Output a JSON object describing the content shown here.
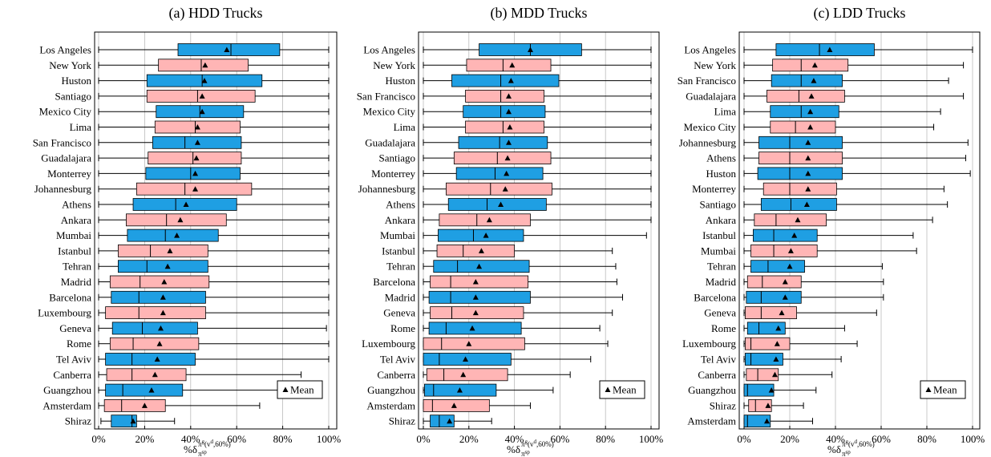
{
  "chart_data": [
    {
      "type": "box",
      "title": "(a) HDD Trucks",
      "categories": [
        "Los Angeles",
        "New York",
        "Huston",
        "Santiago",
        "Mexico City",
        "Lima",
        "San Francisco",
        "Guadalajara",
        "Monterrey",
        "Johannesburg",
        "Athens",
        "Ankara",
        "Mumbai",
        "Istanbul",
        "Tehran",
        "Madrid",
        "Barcelona",
        "Luxembourg",
        "Geneva",
        "Rome",
        "Tel Aviv",
        "Canberra",
        "Guangzhou",
        "Amsterdam",
        "Shiraz"
      ],
      "whisker_low": [
        0,
        0,
        0,
        0,
        0,
        0,
        0,
        0,
        0,
        0,
        0,
        0,
        0,
        0,
        0,
        0,
        0,
        0,
        0,
        0,
        0,
        0,
        0,
        0,
        1
      ],
      "q1": [
        34.5,
        26,
        21,
        21,
        25,
        24.5,
        23.5,
        21.5,
        20.5,
        16.5,
        15,
        12,
        12.5,
        8.5,
        8.5,
        5,
        5.5,
        3,
        6,
        5,
        3,
        3.5,
        3,
        2.5,
        5.5
      ],
      "median": [
        57.5,
        44.6,
        45,
        43,
        44,
        42,
        37.5,
        41,
        40,
        37.5,
        33.5,
        29.5,
        29,
        22.5,
        21,
        18,
        17.5,
        17.5,
        19,
        15,
        14.5,
        14.5,
        10.5,
        10,
        14.5
      ],
      "q3": [
        78.7,
        65,
        71,
        68,
        63,
        61.5,
        62,
        62,
        61.5,
        66.5,
        60,
        55.5,
        52,
        47.5,
        47.5,
        48,
        46.5,
        46.5,
        43,
        43.5,
        42,
        38,
        36.5,
        29,
        16.5
      ],
      "whisker_high": [
        100,
        100,
        100,
        100,
        100,
        100,
        100,
        100,
        100,
        100,
        100,
        100,
        100,
        100,
        100,
        100,
        100,
        100,
        99,
        100,
        100,
        88,
        87,
        70,
        33
      ],
      "mean": [
        55.7,
        46.3,
        46,
        45,
        45,
        43,
        43,
        42.5,
        42,
        42,
        38,
        35.5,
        34,
        31,
        30,
        28.5,
        28,
        28,
        27,
        26.5,
        25.5,
        24.5,
        23,
        20,
        15
      ],
      "colors": [
        "#1f9fe3",
        "#ffb5b5"
      ],
      "xlim": [
        0,
        100
      ],
      "xticks": [
        {
          "value": 0,
          "label": "0%"
        },
        {
          "value": 20,
          "label": "20%"
        },
        {
          "value": 40,
          "label": "40%"
        },
        {
          "value": 60,
          "label": "60%"
        },
        {
          "value": 80,
          "label": "80%"
        },
        {
          "value": 100,
          "label": "100%"
        }
      ],
      "grid": true,
      "legend": {
        "label": "Mean",
        "position": "lower right"
      },
      "x_label": [
        {
          "text": "%δ",
          "pos": "base"
        },
        {
          "text": "π",
          "pos": "sup"
        },
        {
          "text": "g",
          "pos": "supsup"
        },
        {
          "text": "(v",
          "pos": "sup"
        },
        {
          "text": "d",
          "pos": "supsup"
        },
        {
          "text": ",60%)",
          "pos": "sup"
        },
        {
          "text": "π",
          "pos": "sub"
        },
        {
          "text": "sp",
          "pos": "subsub"
        }
      ]
    },
    {
      "type": "box",
      "title": "(b) MDD Trucks",
      "categories": [
        "Los Angeles",
        "New York",
        "Huston",
        "San Francisco",
        "Mexico City",
        "Lima",
        "Guadalajara",
        "Santiago",
        "Monterrey",
        "Johannesburg",
        "Athens",
        "Ankara",
        "Mumbai",
        "Istanbul",
        "Tehran",
        "Barcelona",
        "Madrid",
        "Geneva",
        "Rome",
        "Luxembourg",
        "Tel Aviv",
        "Canberra",
        "Guangzhou",
        "Amsterdam",
        "Shiraz"
      ],
      "whisker_low": [
        0,
        0,
        0,
        0,
        0,
        0,
        0,
        0,
        0,
        0,
        0,
        0,
        0,
        0,
        0,
        0,
        0,
        0,
        0,
        0,
        0,
        0,
        0,
        0,
        0
      ],
      "q1": [
        24.5,
        19,
        12.5,
        18.5,
        17.5,
        18.5,
        15.5,
        13.5,
        14.5,
        10,
        11,
        7,
        6.5,
        6,
        4.5,
        3,
        2.5,
        3,
        2.5,
        0,
        0,
        1.5,
        0.5,
        0,
        3
      ],
      "median": [
        47,
        35,
        34,
        34,
        34,
        35,
        33.5,
        32.5,
        31.5,
        29.5,
        28,
        23.5,
        22,
        17.5,
        15,
        12,
        12,
        12.5,
        10,
        8,
        7,
        9,
        4.5,
        4,
        7
      ],
      "q3": [
        69.5,
        56,
        59.5,
        53,
        53.5,
        53,
        54.5,
        56,
        52.5,
        56.5,
        54,
        47,
        44,
        40,
        46.5,
        46,
        47,
        44,
        43,
        44.5,
        38.5,
        37,
        32,
        29,
        13.5
      ],
      "whisker_high": [
        100,
        100,
        100,
        100,
        100,
        100,
        100,
        100,
        100,
        100,
        100,
        100,
        98,
        83,
        84.5,
        85,
        87.5,
        83,
        77.5,
        81,
        73.5,
        64.5,
        57,
        47,
        30
      ],
      "mean": [
        47,
        39,
        38.5,
        37.5,
        37.5,
        38,
        37.5,
        37,
        36.5,
        36,
        34,
        29,
        27.5,
        25.5,
        24.5,
        23,
        23,
        23,
        21.5,
        20,
        18.5,
        17.5,
        16,
        13.5,
        11.5
      ],
      "colors": [
        "#1f9fe3",
        "#ffb5b5"
      ],
      "xlim": [
        0,
        100
      ],
      "xticks": [
        {
          "value": 0,
          "label": "0%"
        },
        {
          "value": 20,
          "label": "20%"
        },
        {
          "value": 40,
          "label": "40%"
        },
        {
          "value": 60,
          "label": "60%"
        },
        {
          "value": 80,
          "label": "80%"
        },
        {
          "value": 100,
          "label": "100%"
        }
      ],
      "grid": true,
      "legend": {
        "label": "Mean",
        "position": "lower right"
      },
      "x_label": [
        {
          "text": "%δ",
          "pos": "base"
        },
        {
          "text": "π",
          "pos": "sup"
        },
        {
          "text": "g",
          "pos": "supsup"
        },
        {
          "text": "(v",
          "pos": "sup"
        },
        {
          "text": "d",
          "pos": "supsup"
        },
        {
          "text": ",60%)",
          "pos": "sup"
        },
        {
          "text": "π",
          "pos": "sub"
        },
        {
          "text": "sp",
          "pos": "subsub"
        }
      ]
    },
    {
      "type": "box",
      "title": "(c) LDD Trucks",
      "categories": [
        "Los Angeles",
        "New York",
        "San Francisco",
        "Guadalajara",
        "Lima",
        "Mexico City",
        "Johannesburg",
        "Athens",
        "Huston",
        "Monterrey",
        "Santiago",
        "Ankara",
        "Istanbul",
        "Mumbai",
        "Tehran",
        "Madrid",
        "Barcelona",
        "Geneva",
        "Rome",
        "Luxembourg",
        "Tel Aviv",
        "Canberra",
        "Guangzhou",
        "Shiraz",
        "Amsterdam"
      ],
      "whisker_low": [
        0,
        0,
        0,
        0,
        0,
        0,
        0,
        0,
        0,
        0,
        0,
        0,
        0,
        0,
        0,
        0,
        0,
        0,
        0,
        0,
        0,
        0,
        0,
        0,
        0
      ],
      "q1": [
        14,
        12.5,
        12,
        10,
        11.5,
        11.5,
        6.5,
        6.5,
        6,
        8.5,
        7.5,
        4.5,
        4,
        3,
        3,
        1.5,
        1,
        0.5,
        1.5,
        0.5,
        0.5,
        1,
        0,
        2,
        0
      ],
      "median": [
        33,
        25,
        25,
        24,
        25,
        22.5,
        20,
        20,
        20,
        20,
        20.5,
        14,
        13,
        13,
        10.5,
        8,
        7.5,
        7.5,
        6.5,
        3,
        3,
        6,
        1.5,
        5,
        1.5
      ],
      "q3": [
        57,
        45.5,
        43,
        44,
        41.5,
        40,
        43,
        43,
        43,
        40.5,
        40.5,
        36,
        32,
        32,
        26.5,
        25,
        25,
        23,
        18,
        20,
        17,
        15,
        13,
        12,
        11.5
      ],
      "whisker_high": [
        100,
        96,
        89.5,
        96,
        86,
        83,
        98,
        97,
        99,
        87.5,
        89,
        82.5,
        74,
        75.5,
        60.5,
        61,
        61,
        58,
        44,
        49.5,
        42.5,
        38.5,
        31.5,
        26,
        30
      ],
      "mean": [
        37.5,
        31,
        30.5,
        29.5,
        29,
        29,
        28,
        28,
        28,
        28,
        27.5,
        23.5,
        22,
        20.5,
        20,
        18,
        18,
        16.5,
        15,
        14.5,
        14,
        13.5,
        12,
        10.5,
        10
      ],
      "colors": [
        "#1f9fe3",
        "#ffb5b5"
      ],
      "xlim": [
        0,
        100
      ],
      "xticks": [
        {
          "value": 0,
          "label": "0%"
        },
        {
          "value": 20,
          "label": "20%"
        },
        {
          "value": 40,
          "label": "40%"
        },
        {
          "value": 60,
          "label": "60%"
        },
        {
          "value": 80,
          "label": "80%"
        },
        {
          "value": 100,
          "label": "100%"
        }
      ],
      "grid": true,
      "legend": {
        "label": "Mean",
        "position": "lower right"
      },
      "x_label": [
        {
          "text": "%δ",
          "pos": "base"
        },
        {
          "text": "π",
          "pos": "sup"
        },
        {
          "text": "g",
          "pos": "supsup"
        },
        {
          "text": "(v",
          "pos": "sup"
        },
        {
          "text": "d",
          "pos": "supsup"
        },
        {
          "text": ",60%)",
          "pos": "sup"
        },
        {
          "text": "π",
          "pos": "sub"
        },
        {
          "text": "sp",
          "pos": "subsub"
        }
      ]
    }
  ]
}
